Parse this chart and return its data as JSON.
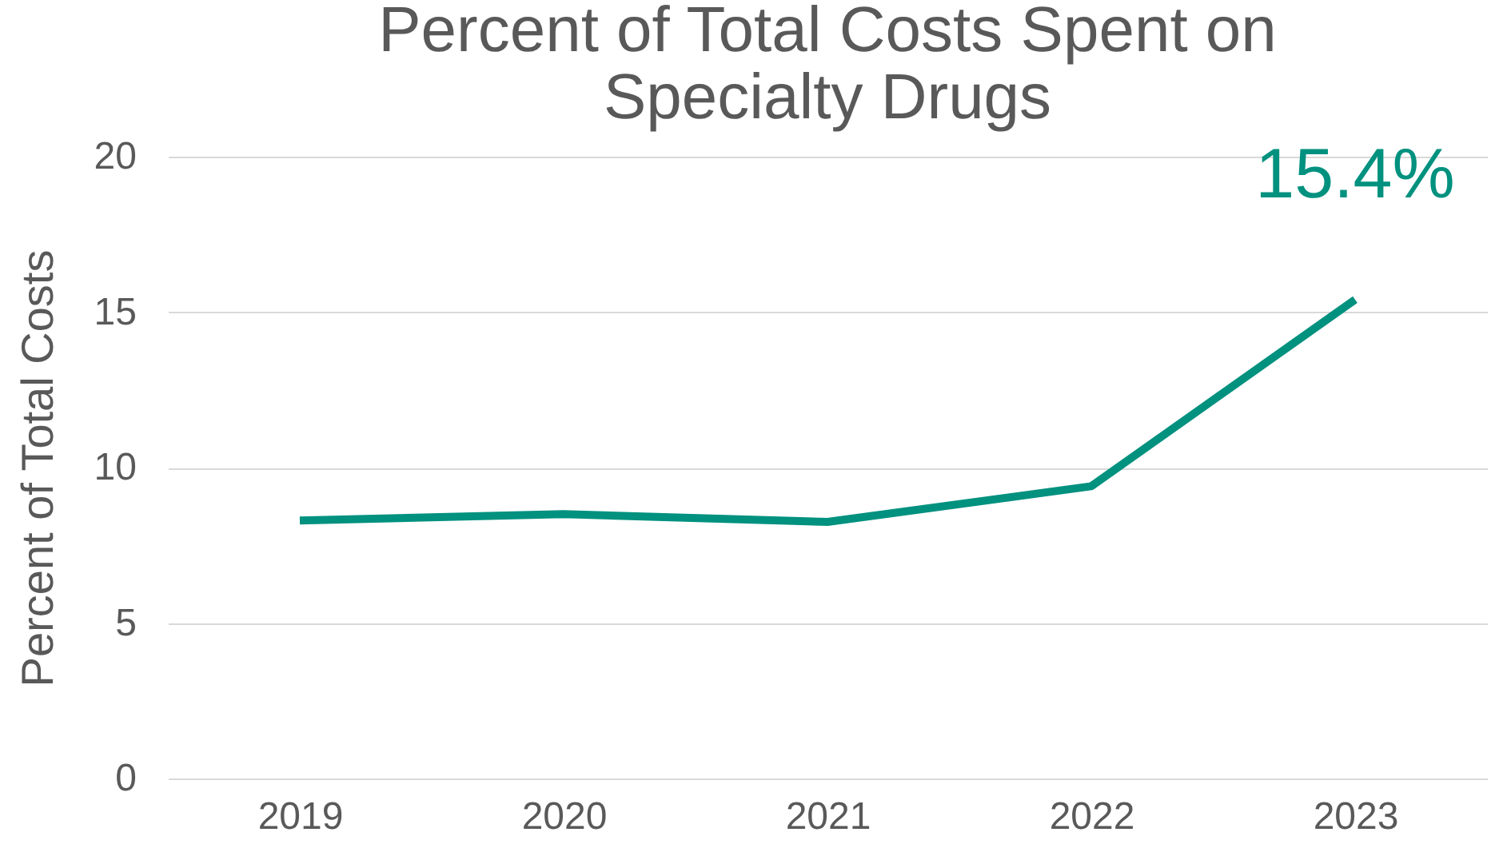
{
  "chart_data": {
    "type": "line",
    "title": "Percent of Total Costs Spent on Specialty Drugs",
    "ylabel": "Percent of Total Costs",
    "categories": [
      "2019",
      "2020",
      "2021",
      "2022",
      "2023"
    ],
    "series": [
      {
        "color": "#00917f",
        "values": [
          8.3,
          8.5,
          8.25,
          9.4,
          15.4
        ]
      }
    ],
    "ylim": [
      0,
      20
    ],
    "yticks": [
      0,
      5,
      10,
      15,
      20
    ],
    "grid": "y",
    "marker": "none",
    "line_style": "solid",
    "annotations": [
      {
        "text": "15.4%",
        "x": "2023",
        "y": 15.4
      }
    ]
  }
}
